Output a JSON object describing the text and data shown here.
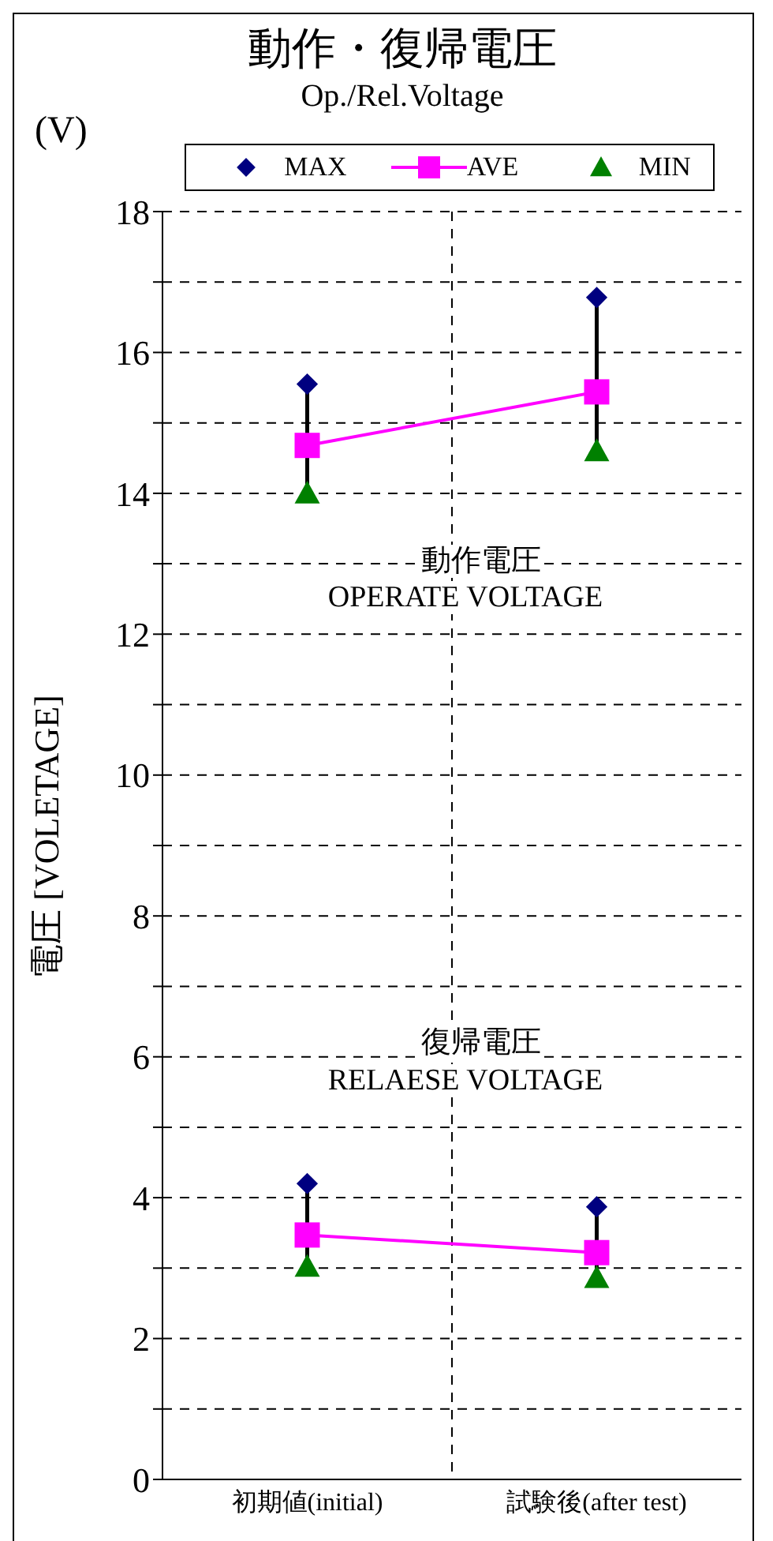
{
  "chart_data": {
    "type": "line",
    "title": "動作・復帰電圧",
    "subtitle": "Op./Rel.Voltage",
    "ylabel": "電圧 [VOLETAGE]",
    "annotations": [
      "(V)",
      "動作電圧",
      "OPERATE VOLTAGE",
      "復帰電圧",
      "RELAESE VOLTAGE"
    ],
    "categories": [
      "初期値(initial)",
      "試験後(after test)"
    ],
    "series": [
      {
        "name": "MAX",
        "type": "scatter",
        "marker": "diamond",
        "color": "#000080",
        "values": [
          15.55,
          16.78
        ]
      },
      {
        "name": "AVE",
        "marker": "square",
        "color": "#ff00ff",
        "values": [
          14.68,
          15.44
        ]
      },
      {
        "name": "MIN",
        "type": "scatter",
        "marker": "triangle",
        "color": "#008000",
        "values": [
          14.0,
          14.6
        ]
      },
      {
        "type": "scatter",
        "marker": "diamond",
        "color": "#000080",
        "values": [
          4.2,
          3.87
        ]
      },
      {
        "marker": "square",
        "color": "#ff00ff",
        "values": [
          3.47,
          3.22
        ]
      },
      {
        "type": "scatter",
        "marker": "triangle",
        "color": "#008000",
        "values": [
          3.02,
          2.86
        ]
      }
    ],
    "ylim": [
      0,
      18
    ],
    "yticks": [
      0,
      {
        "value": 1,
        "label": null
      },
      2,
      {
        "value": 3,
        "label": null
      },
      4,
      {
        "value": 5,
        "label": null
      },
      6,
      {
        "value": 7,
        "label": null
      },
      8,
      {
        "value": 9,
        "label": null
      },
      10,
      {
        "value": 11,
        "label": null
      },
      12,
      {
        "value": 13,
        "label": null
      },
      14,
      {
        "value": 15,
        "label": null
      },
      16,
      {
        "value": 17,
        "label": null
      },
      18
    ],
    "grid": true,
    "legend": "top"
  }
}
